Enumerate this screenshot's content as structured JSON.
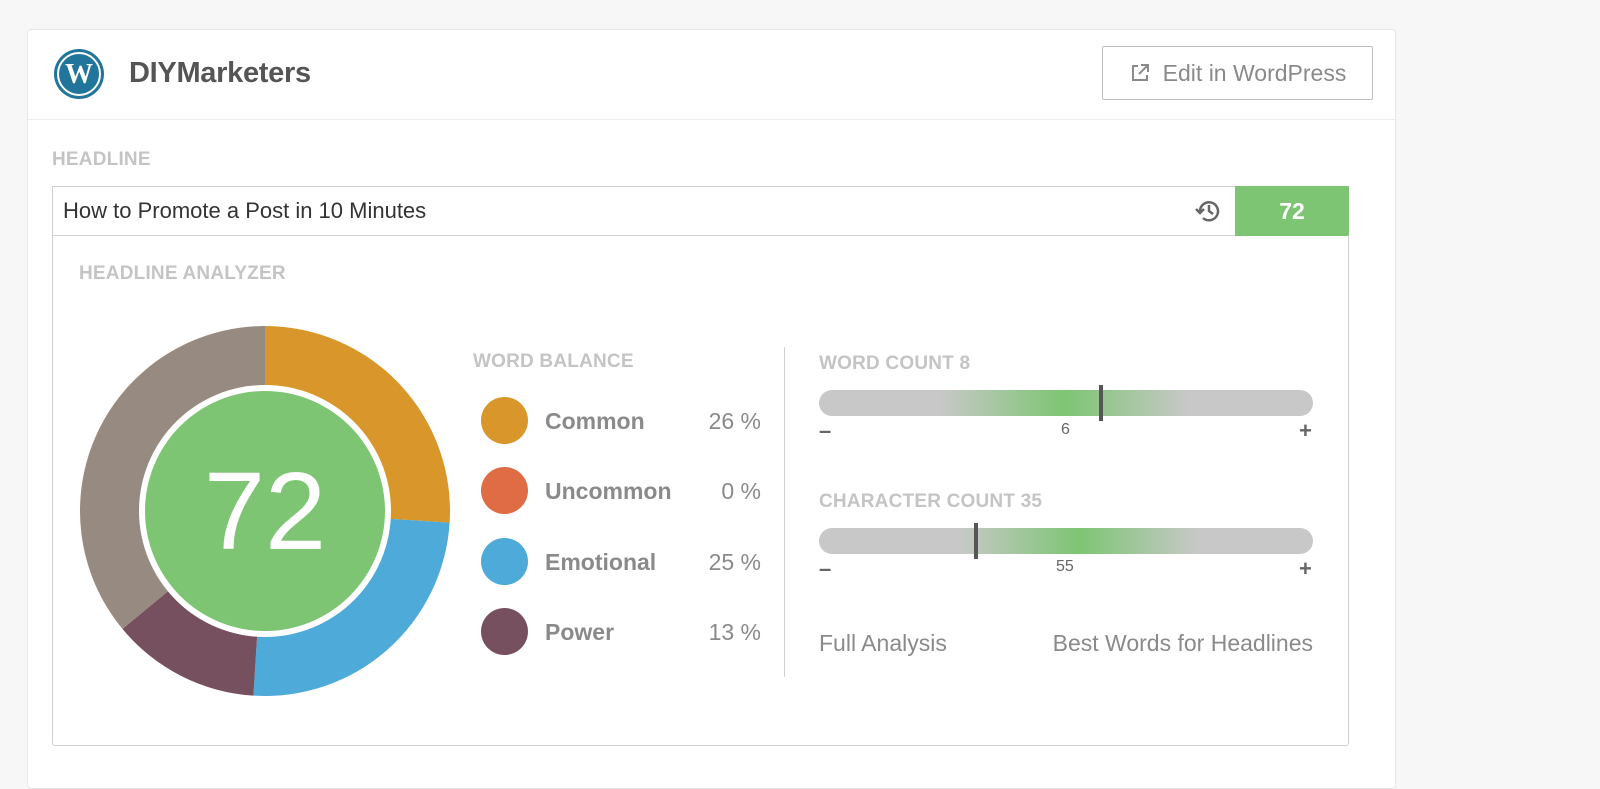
{
  "site": {
    "name": "DIYMarketers",
    "logo_icon": "wordpress-logo-icon"
  },
  "edit_button": {
    "label": "Edit in WordPress",
    "icon": "external-link-icon"
  },
  "headline": {
    "section_label": "HEADLINE",
    "value": "How to Promote a Post in 10 Minutes",
    "history_icon": "history-icon",
    "score": "72"
  },
  "analyzer": {
    "section_label": "HEADLINE ANALYZER",
    "score": "72",
    "score_color": "#7dc573",
    "word_balance": {
      "label": "WORD BALANCE",
      "items": [
        {
          "name": "Common",
          "pct": "26 %",
          "value": 26,
          "color": "#d9972b"
        },
        {
          "name": "Uncommon",
          "pct": "0 %",
          "value": 0,
          "color": "#e06c46"
        },
        {
          "name": "Emotional",
          "pct": "25 %",
          "value": 25,
          "color": "#4eaad9"
        },
        {
          "name": "Power",
          "pct": "13 %",
          "value": 13,
          "color": "#77505f"
        }
      ],
      "remainder_color": "#978a80"
    },
    "word_count": {
      "label": "WORD COUNT 8",
      "ideal_tick": "6",
      "minus": "–",
      "plus": "+",
      "value": 8,
      "range": [
        0,
        14
      ]
    },
    "character_count": {
      "label": "CHARACTER COUNT 35",
      "ideal_tick": "55",
      "minus": "–",
      "plus": "+",
      "value": 35,
      "range": [
        0,
        110
      ]
    },
    "links": {
      "full_analysis": "Full Analysis",
      "best_words": "Best Words for Headlines"
    }
  }
}
